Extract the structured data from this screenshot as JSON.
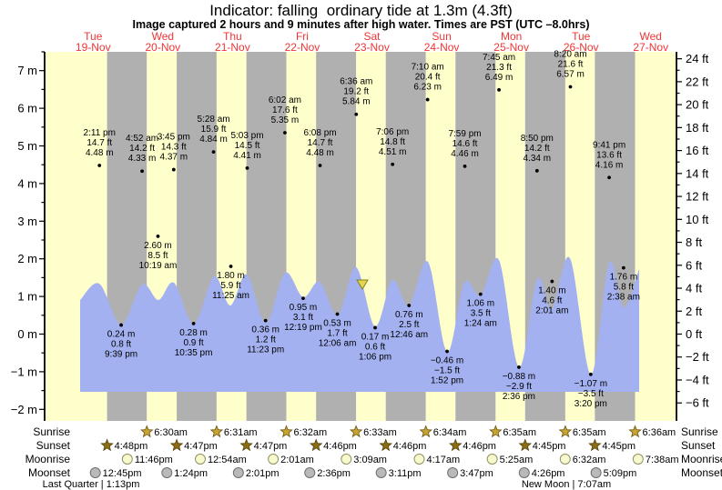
{
  "title": "Indicator: falling  ordinary tide at 1.3m (4.3ft)",
  "subtitle": "Image captured 2 hours and 9 minutes after high water. Times are PST (UTC –8.0hrs)",
  "rows": {
    "sunrise": "Sunrise",
    "sunset": "Sunset",
    "moonrise": "Moonrise",
    "moonset": "Moonset"
  },
  "colors": {
    "day_band": "#ffffcc",
    "night_band": "#b0b0b0",
    "tide_fill": "#a3b1f1",
    "day_label_red": "#f03535",
    "sunrise_star": "#c8a432",
    "sunset_star": "#8a6d14",
    "moonrise_circle": "#f8f8cf",
    "moonset_circle": "#b9b9b9",
    "marker_yellow": "#e6d44e"
  },
  "chart_data": {
    "type": "area",
    "title": "Indicator: falling  ordinary tide at 1.3m (4.3ft)",
    "current_tide": {
      "state": "falling",
      "level_m": 1.3,
      "level_ft": 4.3
    },
    "y_axis": {
      "left_unit": "m",
      "right_unit": "ft",
      "ylim_m": [
        -2.3,
        7.5
      ],
      "m_labels": [
        "7 m",
        "6 m",
        "5 m",
        "4 m",
        "3 m",
        "2 m",
        "1 m",
        "0 m",
        "−1 m",
        "−2 m"
      ],
      "ft_labels": [
        "24 ft",
        "22 ft",
        "20 ft",
        "18 ft",
        "16 ft",
        "14 ft",
        "12 ft",
        "10 ft",
        "8 ft",
        "6 ft",
        "4 ft",
        "2 ft",
        "0 ft",
        "−2 ft",
        "−4 ft",
        "−6 ft"
      ]
    },
    "days": [
      {
        "weekday": "Tue",
        "date": "19-Nov"
      },
      {
        "weekday": "Wed",
        "date": "20-Nov"
      },
      {
        "weekday": "Thu",
        "date": "21-Nov"
      },
      {
        "weekday": "Fri",
        "date": "22-Nov"
      },
      {
        "weekday": "Sat",
        "date": "23-Nov"
      },
      {
        "weekday": "Sun",
        "date": "24-Nov"
      },
      {
        "weekday": "Mon",
        "date": "25-Nov"
      },
      {
        "weekday": "Tue",
        "date": "26-Nov"
      },
      {
        "weekday": "Wed",
        "date": "27-Nov"
      }
    ],
    "events": [
      {
        "day": 0,
        "time": "2:11 pm",
        "kind": "high",
        "height_ft": 14.7,
        "height_m": 4.48
      },
      {
        "day": 0,
        "time": "9:39 pm",
        "kind": "low",
        "height_ft": 0.8,
        "height_m": 0.24
      },
      {
        "day": 1,
        "time": "4:52 am",
        "kind": "high",
        "height_ft": 14.2,
        "height_m": 4.33
      },
      {
        "day": 1,
        "time": "10:19 am",
        "kind": "low",
        "height_ft": 8.5,
        "height_m": 2.6
      },
      {
        "day": 1,
        "time": "3:45 pm",
        "kind": "high",
        "height_ft": 14.3,
        "height_m": 4.37
      },
      {
        "day": 1,
        "time": "10:35 pm",
        "kind": "low",
        "height_ft": 0.9,
        "height_m": 0.28
      },
      {
        "day": 2,
        "time": "5:28 am",
        "kind": "high",
        "height_ft": 15.9,
        "height_m": 4.84
      },
      {
        "day": 2,
        "time": "11:25 am",
        "kind": "low",
        "height_ft": 5.9,
        "height_m": 1.8
      },
      {
        "day": 2,
        "time": "5:03 pm",
        "kind": "high",
        "height_ft": 14.5,
        "height_m": 4.41
      },
      {
        "day": 2,
        "time": "11:23 pm",
        "kind": "low",
        "height_ft": 1.2,
        "height_m": 0.36
      },
      {
        "day": 3,
        "time": "6:02 am",
        "kind": "high",
        "height_ft": 17.6,
        "height_m": 5.35
      },
      {
        "day": 3,
        "time": "12:19 pm",
        "kind": "low",
        "height_ft": 3.1,
        "height_m": 0.95
      },
      {
        "day": 3,
        "time": "6:08 pm",
        "kind": "high",
        "height_ft": 14.7,
        "height_m": 4.48
      },
      {
        "day": 4,
        "time": "12:06 am",
        "kind": "low",
        "height_ft": 1.7,
        "height_m": 0.53
      },
      {
        "day": 4,
        "time": "6:36 am",
        "kind": "high",
        "height_ft": 19.2,
        "height_m": 5.84
      },
      {
        "day": 4,
        "time": "1:06 pm",
        "kind": "low",
        "height_ft": 0.6,
        "height_m": 0.17
      },
      {
        "day": 4,
        "time": "7:06 pm",
        "kind": "high",
        "height_ft": 14.8,
        "height_m": 4.51
      },
      {
        "day": 5,
        "time": "12:46 am",
        "kind": "low",
        "height_ft": 2.5,
        "height_m": 0.76
      },
      {
        "day": 5,
        "time": "7:10 am",
        "kind": "high",
        "height_ft": 20.4,
        "height_m": 6.23
      },
      {
        "day": 5,
        "time": "1:52 pm",
        "kind": "low",
        "height_ft": -1.5,
        "height_m": -0.46
      },
      {
        "day": 5,
        "time": "7:59 pm",
        "kind": "high",
        "height_ft": 14.6,
        "height_m": 4.46
      },
      {
        "day": 6,
        "time": "1:24 am",
        "kind": "low",
        "height_ft": 3.5,
        "height_m": 1.06
      },
      {
        "day": 6,
        "time": "7:45 am",
        "kind": "high",
        "height_ft": 21.3,
        "height_m": 6.49
      },
      {
        "day": 6,
        "time": "2:36 pm",
        "kind": "low",
        "height_ft": -2.9,
        "height_m": -0.88
      },
      {
        "day": 6,
        "time": "8:50 pm",
        "kind": "high",
        "height_ft": 14.2,
        "height_m": 4.34
      },
      {
        "day": 7,
        "time": "2:01 am",
        "kind": "low",
        "height_ft": 4.6,
        "height_m": 1.4
      },
      {
        "day": 7,
        "time": "8:20 am",
        "kind": "high",
        "height_ft": 21.6,
        "height_m": 6.57
      },
      {
        "day": 7,
        "time": "3:20 pm",
        "kind": "low",
        "height_ft": -3.5,
        "height_m": -1.07
      },
      {
        "day": 7,
        "time": "9:41 pm",
        "kind": "high",
        "height_ft": 13.6,
        "height_m": 4.16
      },
      {
        "day": 8,
        "time": "2:38 am",
        "kind": "low",
        "height_ft": 5.8,
        "height_m": 1.76
      }
    ],
    "sun": {
      "sunrise": [
        "6:30am",
        "6:31am",
        "6:32am",
        "6:33am",
        "6:34am",
        "6:35am",
        "6:35am",
        "6:36am"
      ],
      "sunset": [
        "4:48pm",
        "4:47pm",
        "4:47pm",
        "4:46pm",
        "4:46pm",
        "4:46pm",
        "4:45pm",
        "4:45pm"
      ]
    },
    "moon": {
      "moonrise": [
        "11:46pm",
        "12:54am",
        "2:01am",
        "3:09am",
        "4:17am",
        "5:25am",
        "6:32am",
        "7:38am"
      ],
      "moonset": [
        "12:45pm",
        "1:24pm",
        "2:01pm",
        "2:36pm",
        "3:11pm",
        "3:47pm",
        "4:26pm",
        "5:09pm"
      ],
      "phases": [
        {
          "label": "Last Quarter | 1:13pm"
        },
        {
          "label": "New Moon | 7:07am"
        }
      ]
    }
  }
}
